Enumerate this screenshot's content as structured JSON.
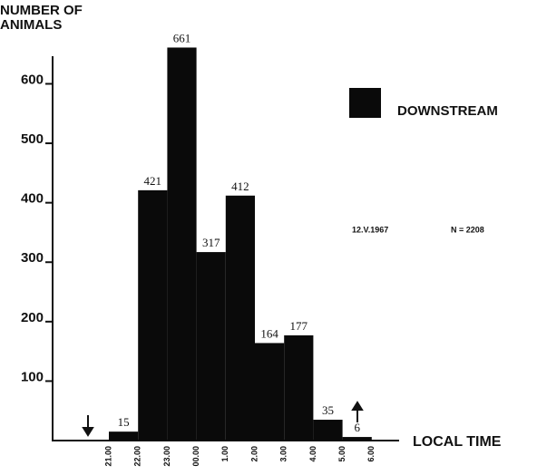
{
  "chart_data": {
    "type": "histogram",
    "y_label": [
      "NUMBER OF",
      "ANIMALS"
    ],
    "x_label": "LOCAL TIME",
    "bins": [
      "21.00",
      "22.00",
      "23.00",
      "00.00",
      "1.00",
      "2.00",
      "3.00",
      "4.00",
      "5.00",
      "6.00"
    ],
    "series": [
      {
        "name": "DOWNSTREAM",
        "color": "#0a0a0a",
        "values": [
          15,
          421,
          661,
          317,
          412,
          164,
          177,
          35,
          6
        ]
      }
    ],
    "ylim": [
      0,
      680
    ],
    "yticks": [
      100,
      200,
      300,
      400,
      500,
      600
    ],
    "annotations": [
      "12.V.1967",
      "N = 2208"
    ],
    "legend": "upper right"
  }
}
